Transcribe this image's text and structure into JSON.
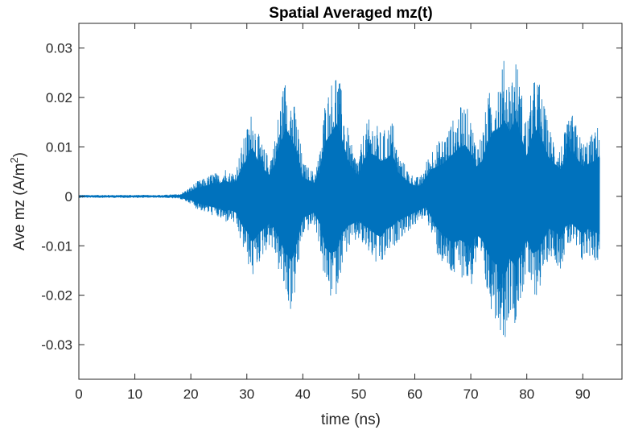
{
  "chart_data": {
    "type": "line",
    "title": "Spatial Averaged mz(t)",
    "xlabel": "time (ns)",
    "ylabel_main": "Ave mz (A/m",
    "ylabel_sup": "2",
    "ylabel_close": ")",
    "xlim": [
      0,
      97
    ],
    "ylim": [
      -0.037,
      0.035
    ],
    "xticks": [
      0,
      10,
      20,
      30,
      40,
      50,
      60,
      70,
      80,
      90
    ],
    "xtick_labels": [
      "0",
      "10",
      "20",
      "30",
      "40",
      "50",
      "60",
      "70",
      "80",
      "90"
    ],
    "yticks": [
      0.03,
      0.02,
      0.01,
      0,
      -0.01,
      -0.02,
      -0.03
    ],
    "ytick_labels": [
      "0.03",
      "0.02",
      "0.01",
      "0",
      "-0.01",
      "-0.02",
      "-0.03"
    ],
    "line_color": "#0072BD",
    "grid": false,
    "series": [
      {
        "x": [
          0,
          5,
          10,
          15,
          18,
          19,
          20,
          21,
          22,
          23,
          24,
          25,
          26,
          27,
          28,
          29,
          30,
          31,
          32,
          33,
          34,
          35,
          36,
          37,
          38,
          39,
          40,
          41,
          42,
          43,
          44,
          45,
          46,
          47,
          48,
          49,
          50,
          51,
          52,
          53,
          54,
          55,
          56,
          57,
          58,
          59,
          60,
          61,
          62,
          63,
          64,
          65,
          66,
          67,
          68,
          69,
          70,
          71,
          72,
          73,
          74,
          75,
          76,
          77,
          78,
          79,
          80,
          81,
          82,
          83,
          84,
          85,
          86,
          87,
          88,
          89,
          90,
          91,
          92,
          93
        ],
        "upper": [
          0.0003,
          0.0003,
          0.0003,
          0.0003,
          0.0005,
          0.0012,
          0.002,
          0.003,
          0.0035,
          0.004,
          0.005,
          0.0045,
          0.006,
          0.005,
          0.0055,
          0.01,
          0.014,
          0.018,
          0.013,
          0.01,
          0.008,
          0.012,
          0.02,
          0.025,
          0.021,
          0.016,
          0.007,
          0.006,
          0.005,
          0.009,
          0.02,
          0.023,
          0.027,
          0.021,
          0.014,
          0.009,
          0.008,
          0.014,
          0.016,
          0.015,
          0.013,
          0.014,
          0.016,
          0.009,
          0.007,
          0.005,
          0.004,
          0.004,
          0.007,
          0.01,
          0.011,
          0.012,
          0.014,
          0.016,
          0.018,
          0.019,
          0.016,
          0.011,
          0.013,
          0.02,
          0.024,
          0.025,
          0.028,
          0.024,
          0.029,
          0.022,
          0.015,
          0.023,
          0.025,
          0.019,
          0.014,
          0.012,
          0.01,
          0.014,
          0.017,
          0.014,
          0.011,
          0.012,
          0.013,
          0.015
        ],
        "lower": [
          -0.0003,
          -0.0003,
          -0.0003,
          -0.0003,
          -0.0005,
          -0.001,
          -0.0015,
          -0.0025,
          -0.003,
          -0.0035,
          -0.004,
          -0.0045,
          -0.0055,
          -0.005,
          -0.006,
          -0.01,
          -0.013,
          -0.017,
          -0.014,
          -0.012,
          -0.01,
          -0.012,
          -0.017,
          -0.021,
          -0.024,
          -0.017,
          -0.008,
          -0.007,
          -0.006,
          -0.01,
          -0.019,
          -0.021,
          -0.02,
          -0.014,
          -0.011,
          -0.01,
          -0.009,
          -0.011,
          -0.012,
          -0.014,
          -0.015,
          -0.012,
          -0.011,
          -0.009,
          -0.008,
          -0.007,
          -0.006,
          -0.005,
          -0.004,
          -0.008,
          -0.012,
          -0.014,
          -0.016,
          -0.017,
          -0.016,
          -0.017,
          -0.019,
          -0.014,
          -0.016,
          -0.021,
          -0.024,
          -0.026,
          -0.03,
          -0.023,
          -0.026,
          -0.021,
          -0.016,
          -0.021,
          -0.02,
          -0.016,
          -0.012,
          -0.013,
          -0.015,
          -0.011,
          -0.01,
          -0.012,
          -0.014,
          -0.012,
          -0.013,
          -0.014
        ]
      }
    ]
  }
}
